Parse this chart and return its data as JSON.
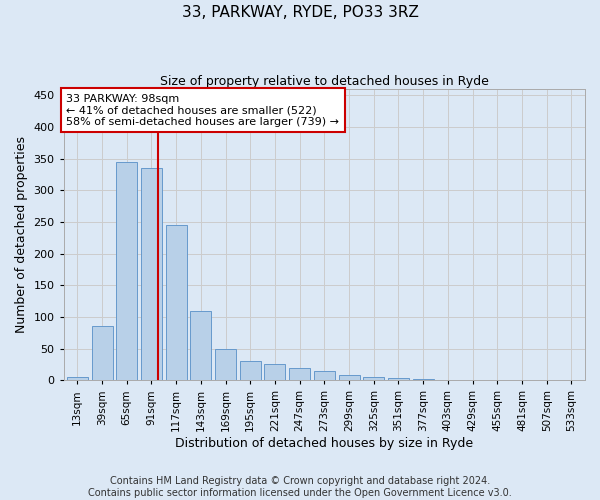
{
  "title": "33, PARKWAY, RYDE, PO33 3RZ",
  "subtitle": "Size of property relative to detached houses in Ryde",
  "xlabel": "Distribution of detached houses by size in Ryde",
  "ylabel": "Number of detached properties",
  "bin_labels": [
    "13sqm",
    "39sqm",
    "65sqm",
    "91sqm",
    "117sqm",
    "143sqm",
    "169sqm",
    "195sqm",
    "221sqm",
    "247sqm",
    "273sqm",
    "299sqm",
    "325sqm",
    "351sqm",
    "377sqm",
    "403sqm",
    "429sqm",
    "455sqm",
    "481sqm",
    "507sqm",
    "533sqm"
  ],
  "bar_heights": [
    5,
    85,
    345,
    335,
    245,
    110,
    50,
    30,
    25,
    20,
    15,
    8,
    5,
    3,
    2,
    1,
    1,
    1,
    1,
    1,
    1
  ],
  "bar_color": "#b8d0e8",
  "bar_edgecolor": "#6699cc",
  "property_size_sqm": 98,
  "property_label": "33 PARKWAY: 98sqm",
  "annotation_line1": "← 41% of detached houses are smaller (522)",
  "annotation_line2": "58% of semi-detached houses are larger (739) →",
  "vline_color": "#cc0000",
  "annotation_box_edgecolor": "#cc0000",
  "ylim": [
    0,
    460
  ],
  "yticks": [
    0,
    50,
    100,
    150,
    200,
    250,
    300,
    350,
    400,
    450
  ],
  "grid_color": "#cccccc",
  "fig_bg_color": "#dce8f5",
  "plot_bg_color": "#dce8f5",
  "footer_line1": "Contains HM Land Registry data © Crown copyright and database right 2024.",
  "footer_line2": "Contains public sector information licensed under the Open Government Licence v3.0.",
  "title_fontsize": 11,
  "subtitle_fontsize": 9,
  "ylabel_fontsize": 9,
  "xlabel_fontsize": 9,
  "tick_fontsize": 8,
  "xtick_fontsize": 7.5,
  "annotation_fontsize": 8,
  "footer_fontsize": 7
}
